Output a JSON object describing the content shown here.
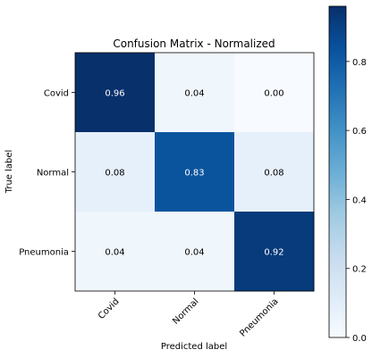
{
  "chart_data": {
    "type": "heatmap",
    "title": "Confusion Matrix - Normalized",
    "xlabel": "Predicted label",
    "ylabel": "True label",
    "x_categories": [
      "Covid",
      "Normal",
      "Pneumonia"
    ],
    "y_categories": [
      "Covid",
      "Normal",
      "Pneumonia"
    ],
    "values": [
      [
        0.96,
        0.04,
        0.0
      ],
      [
        0.08,
        0.83,
        0.08
      ],
      [
        0.04,
        0.04,
        0.92
      ]
    ],
    "value_labels": [
      [
        "0.96",
        "0.04",
        "0.00"
      ],
      [
        "0.08",
        "0.83",
        "0.08"
      ],
      [
        "0.04",
        "0.04",
        "0.92"
      ]
    ],
    "colormap": "Blues",
    "colorbar": {
      "range": [
        0,
        0.96
      ],
      "ticks": [
        0.0,
        0.2,
        0.4,
        0.6,
        0.8
      ],
      "tick_labels": [
        "0.0",
        "0.2",
        "0.4",
        "0.6",
        "0.8"
      ]
    },
    "x_tick_rotation": "45 degrees",
    "grid": false,
    "legend": "colorbar-right"
  }
}
